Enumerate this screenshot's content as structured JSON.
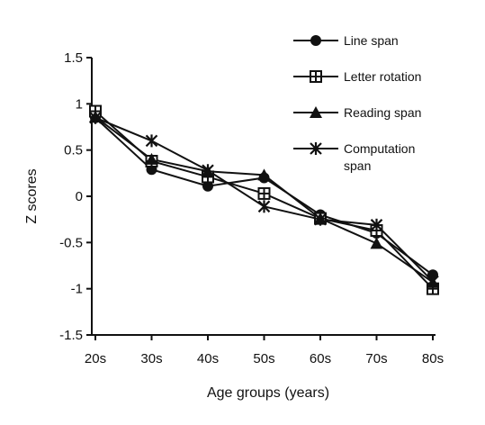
{
  "chart_data": {
    "type": "line",
    "xlabel": "Age groups (years)",
    "ylabel": "Z scores",
    "categories": [
      "20s",
      "30s",
      "40s",
      "50s",
      "60s",
      "70s",
      "80s"
    ],
    "ylim": [
      -1.5,
      1.5
    ],
    "yticks": [
      "1.5",
      "1",
      "0.5",
      "0",
      "-0.5",
      "-1",
      "-1.5"
    ],
    "grid": false,
    "legend_position": "top-right",
    "series": [
      {
        "name": "Line span",
        "marker": "filled-circle",
        "values": [
          0.85,
          0.29,
          0.11,
          0.2,
          -0.2,
          -0.4,
          -0.85
        ]
      },
      {
        "name": "Letter rotation",
        "marker": "open-square-cross",
        "values": [
          0.92,
          0.38,
          0.21,
          0.03,
          -0.24,
          -0.37,
          -1.0
        ]
      },
      {
        "name": "Reading span",
        "marker": "filled-triangle",
        "values": [
          0.86,
          0.4,
          0.27,
          0.23,
          -0.24,
          -0.51,
          -0.93
        ]
      },
      {
        "name": "Computation span",
        "marker": "star",
        "values": [
          0.85,
          0.6,
          0.28,
          -0.11,
          -0.25,
          -0.31,
          -0.92
        ]
      }
    ]
  }
}
